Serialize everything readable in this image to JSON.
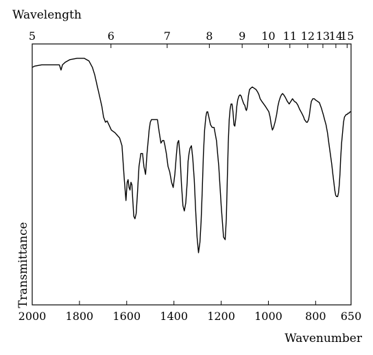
{
  "chart_data": {
    "type": "line",
    "title": "",
    "xlabel": "Wavenumber",
    "ylabel": "Transmittance",
    "top_axis_label": "Wavelength",
    "x_range": [
      2000,
      650
    ],
    "x_ticks": [
      2000,
      1800,
      1600,
      1400,
      1200,
      1000,
      800,
      650
    ],
    "x_tick_labels": [
      "2000",
      "1800",
      "1600",
      "1400",
      "1200",
      "1000",
      "800",
      "650"
    ],
    "top_ticks": [
      5,
      6,
      7,
      8,
      9,
      10,
      11,
      12,
      13,
      14,
      15
    ],
    "top_tick_labels": [
      "5",
      "6",
      "7",
      "8",
      "9",
      "10",
      "11",
      "12",
      "13",
      "14",
      "15"
    ],
    "y_range": [
      0,
      100
    ],
    "grid": false,
    "legend": "none",
    "line_color": "#000000",
    "series": [
      {
        "x": [
          2000,
          1990,
          1960,
          1930,
          1900,
          1885,
          1878,
          1872,
          1860,
          1840,
          1810,
          1780,
          1760,
          1745,
          1735,
          1725,
          1715,
          1705,
          1698,
          1690,
          1683,
          1675,
          1665,
          1650,
          1640,
          1630,
          1620,
          1610,
          1603,
          1598,
          1594,
          1590,
          1586,
          1582,
          1578,
          1574,
          1570,
          1565,
          1560,
          1555,
          1548,
          1540,
          1533,
          1527,
          1520,
          1514,
          1508,
          1505,
          1500,
          1495,
          1490,
          1480,
          1470,
          1462,
          1455,
          1448,
          1443,
          1438,
          1432,
          1425,
          1418,
          1410,
          1403,
          1396,
          1390,
          1385,
          1380,
          1374,
          1368,
          1362,
          1356,
          1350,
          1344,
          1340,
          1336,
          1332,
          1326,
          1320,
          1314,
          1308,
          1302,
          1296,
          1290,
          1285,
          1280,
          1275,
          1270,
          1265,
          1262,
          1260,
          1257,
          1252,
          1245,
          1238,
          1230,
          1220,
          1210,
          1200,
          1190,
          1183,
          1178,
          1174,
          1170,
          1166,
          1162,
          1158,
          1154,
          1150,
          1146,
          1142,
          1138,
          1134,
          1130,
          1125,
          1120,
          1115,
          1112,
          1108,
          1104,
          1100,
          1096,
          1093,
          1090,
          1088,
          1085,
          1080,
          1075,
          1068,
          1060,
          1052,
          1045,
          1040,
          1035,
          1028,
          1020,
          1012,
          1005,
          998,
          993,
          988,
          983,
          978,
          972,
          965,
          960,
          955,
          950,
          945,
          940,
          935,
          928,
          920,
          912,
          905,
          898,
          890,
          882,
          875,
          868,
          862,
          856,
          851,
          847,
          843,
          839,
          835,
          830,
          826,
          822,
          818,
          812,
          806,
          800,
          792,
          784,
          776,
          768,
          762,
          756,
          750,
          744,
          738,
          732,
          727,
          723,
          719,
          715,
          711,
          707,
          703,
          700,
          697,
          694,
          690,
          686,
          682,
          678,
          674,
          670,
          666,
          662,
          658,
          654,
          650
        ],
        "y": [
          91,
          91.5,
          92,
          92,
          92,
          92,
          90,
          92,
          93,
          94,
          94.5,
          94.5,
          93.5,
          91,
          88,
          84,
          80,
          76,
          72,
          70,
          70.5,
          69,
          67,
          66,
          65,
          64,
          61,
          48,
          40,
          47,
          48,
          45,
          44,
          47,
          46,
          40,
          34,
          33,
          35,
          42,
          53,
          58,
          58,
          53,
          50,
          58,
          64,
          67,
          70,
          71,
          71,
          71,
          71,
          66,
          62,
          63,
          63,
          61,
          58,
          53,
          51,
          47,
          45,
          50,
          57,
          62,
          63,
          57,
          46,
          38,
          36,
          39,
          47,
          55,
          58,
          60,
          61,
          56,
          48,
          36,
          26,
          20,
          24,
          32,
          44,
          58,
          67,
          72,
          73.5,
          74,
          74,
          72,
          69,
          68,
          68,
          63,
          53,
          38,
          26,
          25,
          33,
          48,
          62,
          71,
          75,
          77,
          77,
          74,
          69,
          68.5,
          71.5,
          76,
          78.5,
          80,
          80.5,
          80,
          79,
          78,
          77,
          76.5,
          75,
          74.5,
          75.5,
          77,
          80,
          82.5,
          83,
          83.5,
          83,
          82.5,
          81.5,
          80.5,
          79,
          78,
          77,
          76,
          75,
          74,
          72,
          69,
          67,
          68,
          70,
          73,
          76,
          78,
          79.5,
          80.5,
          81,
          80.5,
          79.5,
          78,
          77,
          78,
          79,
          78,
          77.5,
          76.5,
          75,
          74,
          73,
          72,
          71,
          70.5,
          70,
          70,
          71,
          73,
          76,
          78,
          79,
          79,
          78.5,
          78,
          77.5,
          75.5,
          73,
          71,
          69,
          66,
          62,
          58,
          54,
          50,
          47,
          44,
          42,
          41.5,
          41.5,
          43,
          46,
          50,
          56,
          62,
          66,
          70,
          72,
          72.5,
          73,
          73,
          73.5,
          73.5,
          74,
          74
        ]
      }
    ]
  }
}
